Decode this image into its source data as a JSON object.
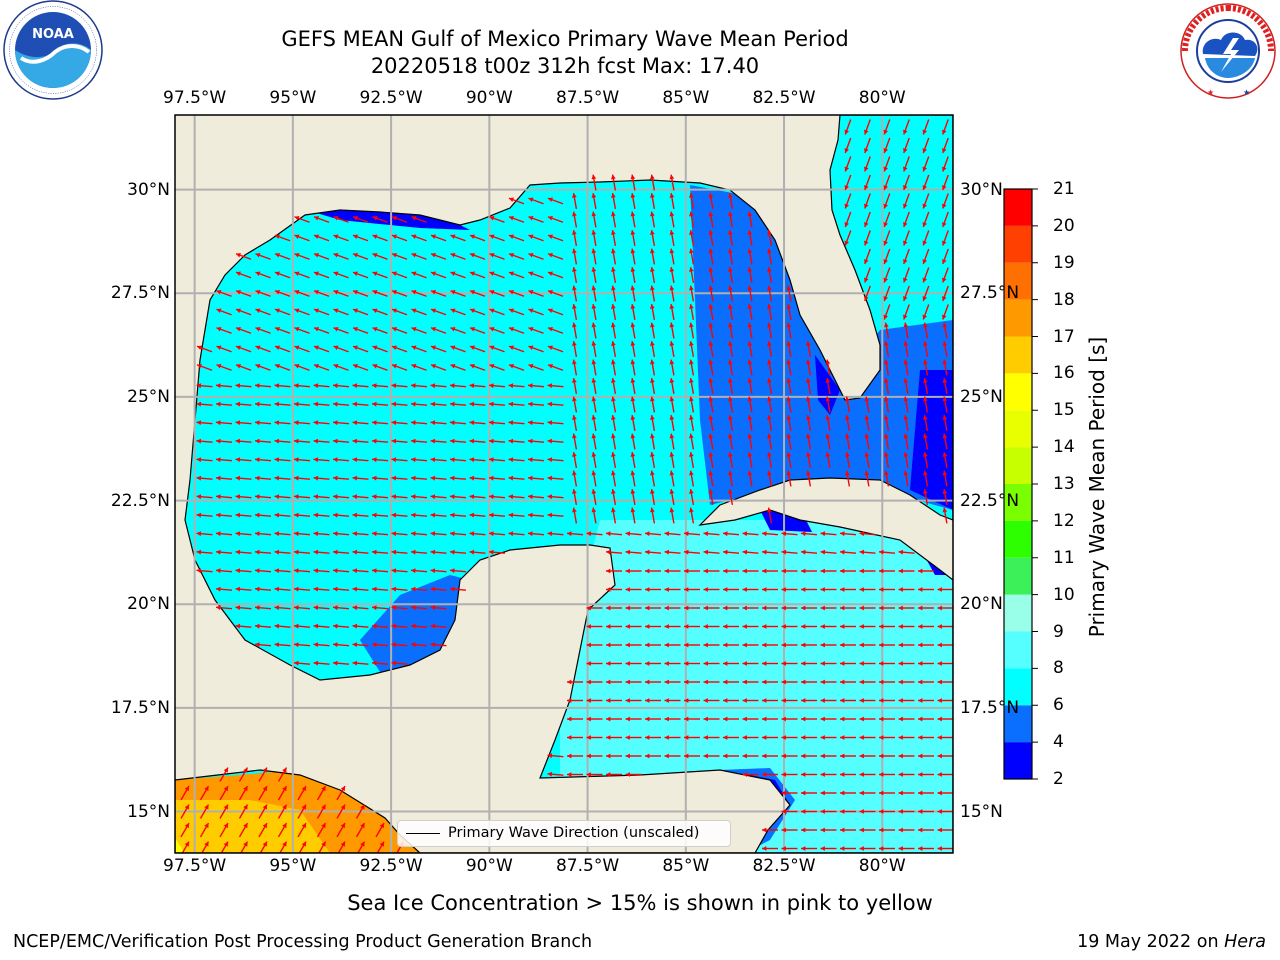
{
  "title": {
    "line1": "GEFS MEAN Gulf of Mexico Primary Wave Mean Period",
    "line2": "20220518 t00z 312h fcst   Max: 17.40"
  },
  "logos": {
    "noaa": {
      "text": "NOAA",
      "ring_text": "NATIONAL OCEANIC AND ATMOSPHERIC ADMINISTRATION · U.S. DEPARTMENT OF COMMERCE"
    },
    "nws": {
      "ring_text": "NATIONAL WEATHER SERVICE"
    }
  },
  "map": {
    "projection": "PlateCarree",
    "extent_lon": [
      -98.0,
      -78.2
    ],
    "extent_lat": [
      14.0,
      31.8
    ],
    "lon_ticks": [
      {
        "value": -97.5,
        "label": "97.5°W"
      },
      {
        "value": -95,
        "label": "95°W"
      },
      {
        "value": -92.5,
        "label": "92.5°W"
      },
      {
        "value": -90,
        "label": "90°W"
      },
      {
        "value": -87.5,
        "label": "87.5°W"
      },
      {
        "value": -85,
        "label": "85°W"
      },
      {
        "value": -82.5,
        "label": "82.5°W"
      },
      {
        "value": -80,
        "label": "80°W"
      }
    ],
    "lat_ticks": [
      {
        "value": 30,
        "label": "30°N"
      },
      {
        "value": 27.5,
        "label": "27.5°N"
      },
      {
        "value": 25,
        "label": "25°N"
      },
      {
        "value": 22.5,
        "label": "22.5°N"
      },
      {
        "value": 20,
        "label": "20°N"
      },
      {
        "value": 17.5,
        "label": "17.5°N"
      },
      {
        "value": 15,
        "label": "15°N"
      }
    ],
    "gridlines": true,
    "land_color": "#efecdc",
    "arrow_color": "#ff0000",
    "legend_label": "Primary Wave Direction (unscaled)",
    "legend_position": "lower-center"
  },
  "colorbar": {
    "label": "Primary Wave Mean Period [s]",
    "bounds": [
      2,
      4,
      6,
      8,
      9,
      10,
      11,
      12,
      13,
      14,
      15,
      16,
      17,
      18,
      19,
      20,
      21
    ],
    "colors": [
      "#0000ff",
      "#0a6fff",
      "#00ffff",
      "#55ffff",
      "#99ffe8",
      "#3cf05a",
      "#2eff00",
      "#7aff00",
      "#c8ff00",
      "#e9ff00",
      "#ffff00",
      "#ffcc00",
      "#ff9900",
      "#ff7000",
      "#ff4000",
      "#ff0000"
    ]
  },
  "notes": {
    "ice": "Sea Ice Concentration > 15% is shown in pink to yellow"
  },
  "footer": {
    "left": "NCEP/EMC/Verification Post Processing Product Generation Branch",
    "date": "19 May 2022 on",
    "machine": "Hera"
  }
}
